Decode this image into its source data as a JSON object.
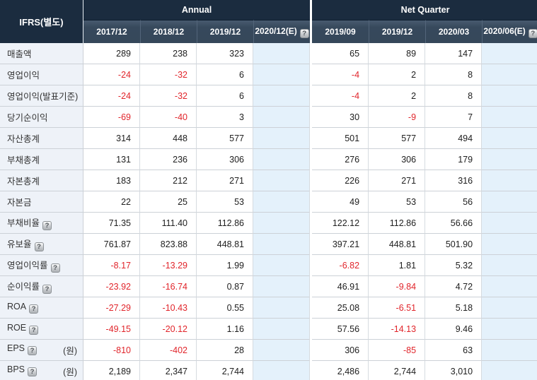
{
  "colors": {
    "header_top_bg": "#1b2c3f",
    "header_date_bg": "#37495c",
    "label_cell_bg": "#eef2f8",
    "estimate_col_bg": "#e4f1fb",
    "negative_value": "#e1252b",
    "value_text": "#202020",
    "border": "#ccd1d7"
  },
  "table": {
    "corner_label": "IFRS(별도)",
    "help_icon_glyph": "?",
    "groups": [
      {
        "label": "Annual"
      },
      {
        "label": "Net Quarter"
      }
    ],
    "columns": [
      {
        "label": "2017/12",
        "estimate": false,
        "help": false
      },
      {
        "label": "2018/12",
        "estimate": false,
        "help": false
      },
      {
        "label": "2019/12",
        "estimate": false,
        "help": false
      },
      {
        "label": "2020/12(E)",
        "estimate": true,
        "help": true
      },
      {
        "label": "2019/09",
        "estimate": false,
        "help": false
      },
      {
        "label": "2019/12",
        "estimate": false,
        "help": false
      },
      {
        "label": "2020/03",
        "estimate": false,
        "help": false
      },
      {
        "label": "2020/06(E)",
        "estimate": true,
        "help": true
      }
    ],
    "rows": [
      {
        "label": "매출액",
        "help": false,
        "unit": "",
        "values": [
          "289",
          "238",
          "323",
          "",
          "65",
          "89",
          "147",
          ""
        ]
      },
      {
        "label": "영업이익",
        "help": false,
        "unit": "",
        "values": [
          "-24",
          "-32",
          "6",
          "",
          "-4",
          "2",
          "8",
          ""
        ]
      },
      {
        "label": "영업이익(발표기준)",
        "help": false,
        "unit": "",
        "values": [
          "-24",
          "-32",
          "6",
          "",
          "-4",
          "2",
          "8",
          ""
        ]
      },
      {
        "label": "당기순이익",
        "help": false,
        "unit": "",
        "values": [
          "-69",
          "-40",
          "3",
          "",
          "30",
          "-9",
          "7",
          ""
        ]
      },
      {
        "label": "자산총계",
        "help": false,
        "unit": "",
        "values": [
          "314",
          "448",
          "577",
          "",
          "501",
          "577",
          "494",
          ""
        ]
      },
      {
        "label": "부채총계",
        "help": false,
        "unit": "",
        "values": [
          "131",
          "236",
          "306",
          "",
          "276",
          "306",
          "179",
          ""
        ]
      },
      {
        "label": "자본총계",
        "help": false,
        "unit": "",
        "values": [
          "183",
          "212",
          "271",
          "",
          "226",
          "271",
          "316",
          ""
        ]
      },
      {
        "label": "자본금",
        "help": false,
        "unit": "",
        "values": [
          "22",
          "25",
          "53",
          "",
          "49",
          "53",
          "56",
          ""
        ]
      },
      {
        "label": "부채비율",
        "help": true,
        "unit": "",
        "values": [
          "71.35",
          "111.40",
          "112.86",
          "",
          "122.12",
          "112.86",
          "56.66",
          ""
        ]
      },
      {
        "label": "유보율",
        "help": true,
        "unit": "",
        "values": [
          "761.87",
          "823.88",
          "448.81",
          "",
          "397.21",
          "448.81",
          "501.90",
          ""
        ]
      },
      {
        "label": "영업이익률",
        "help": true,
        "unit": "",
        "values": [
          "-8.17",
          "-13.29",
          "1.99",
          "",
          "-6.82",
          "1.81",
          "5.32",
          ""
        ]
      },
      {
        "label": "순이익률",
        "help": true,
        "unit": "",
        "values": [
          "-23.92",
          "-16.74",
          "0.87",
          "",
          "46.91",
          "-9.84",
          "4.72",
          ""
        ]
      },
      {
        "label": "ROA",
        "help": true,
        "unit": "",
        "values": [
          "-27.29",
          "-10.43",
          "0.55",
          "",
          "25.08",
          "-6.51",
          "5.18",
          ""
        ]
      },
      {
        "label": "ROE",
        "help": true,
        "unit": "",
        "values": [
          "-49.15",
          "-20.12",
          "1.16",
          "",
          "57.56",
          "-14.13",
          "9.46",
          ""
        ]
      },
      {
        "label": "EPS",
        "help": true,
        "unit": "(원)",
        "values": [
          "-810",
          "-402",
          "28",
          "",
          "306",
          "-85",
          "63",
          ""
        ]
      },
      {
        "label": "BPS",
        "help": true,
        "unit": "(원)",
        "values": [
          "2,189",
          "2,347",
          "2,744",
          "",
          "2,486",
          "2,744",
          "3,010",
          ""
        ]
      }
    ]
  }
}
